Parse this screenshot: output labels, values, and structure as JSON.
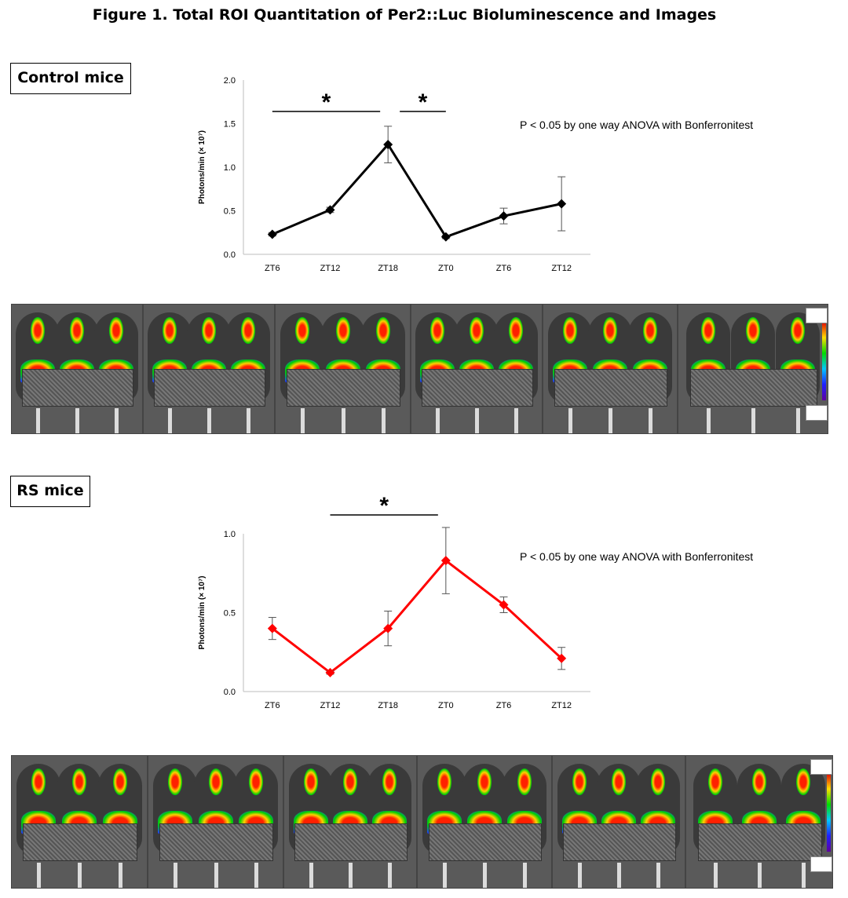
{
  "figure_title": "Figure 1. Total ROI Quantitation of Per2::Luc Bioluminescence and Images",
  "panels": {
    "control": {
      "label": "Control mice"
    },
    "rs": {
      "label": "RS mice"
    }
  },
  "chart_data": [
    {
      "type": "line",
      "categories": [
        "ZT6",
        "ZT12",
        "ZT18",
        "ZT0",
        "ZT6",
        "ZT12"
      ],
      "series": [
        {
          "values": [
            0.23,
            0.51,
            1.26,
            0.2,
            0.44,
            0.58
          ],
          "errors": [
            0.02,
            0.03,
            0.21,
            0.02,
            0.09,
            0.31
          ],
          "color": "#000000",
          "marker": "diamond"
        }
      ],
      "ylabel": "Photons/min (× 10⁷)",
      "ylim": [
        0.0,
        2.0
      ],
      "yticks": [
        "0.0",
        "0.5",
        "1.0",
        "1.5",
        "2.0"
      ],
      "annotation": "P < 0.05 by one way ANOVA with Bonferronitest",
      "significance": [
        {
          "from": "ZT6",
          "to": "ZT18",
          "symbol": "*"
        },
        {
          "from": "ZT18",
          "to": "ZT0",
          "symbol": "*"
        }
      ],
      "grid": false
    },
    {
      "type": "line",
      "categories": [
        "ZT6",
        "ZT12",
        "ZT18",
        "ZT0",
        "ZT6",
        "ZT12"
      ],
      "series": [
        {
          "values": [
            0.4,
            0.12,
            0.4,
            0.83,
            0.55,
            0.21
          ],
          "errors": [
            0.07,
            0.01,
            0.11,
            0.21,
            0.05,
            0.07
          ],
          "color": "#ff0000",
          "marker": "diamond"
        }
      ],
      "ylabel": "Photons/min (× 10⁷)",
      "ylim": [
        0.0,
        1.0
      ],
      "yticks": [
        "0.0",
        "0.5",
        "1.0"
      ],
      "annotation": "P < 0.05 by one way ANOVA with Bonferronitest",
      "significance": [
        {
          "from": "ZT12",
          "to": "ZT0",
          "symbol": "*"
        }
      ],
      "grid": false
    }
  ],
  "image_strips": {
    "control": {
      "panel_count": 6,
      "colorbar_colors": [
        "#e00000",
        "#ffdd00",
        "#00dd00",
        "#00c8ff",
        "#2020ff",
        "#6000a0"
      ]
    },
    "rs": {
      "panel_count": 6,
      "colorbar_colors": [
        "#e00000",
        "#ffdd00",
        "#00dd00",
        "#00c8ff",
        "#2020ff",
        "#6000a0"
      ]
    }
  }
}
